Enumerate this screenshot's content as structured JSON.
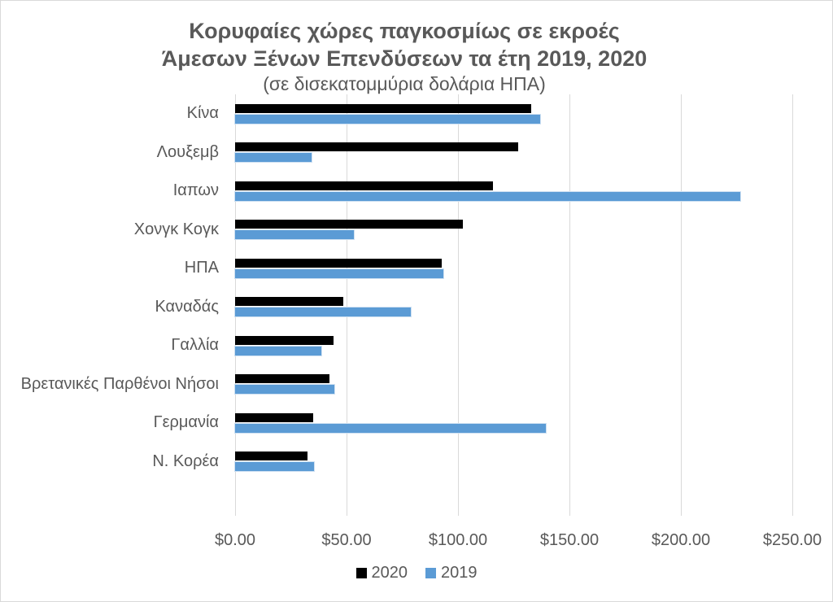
{
  "chart_data": {
    "type": "bar",
    "orientation": "horizontal",
    "title_line1": "Κορυφαίες χώρες παγκοσμίως σε εκροές",
    "title_line2": "Άμεσων Ξένων Επενδύσεων τα έτη 2019, 2020",
    "subtitle": "(σε δισεκατομμύρια δολάρια ΗΠΑ)",
    "categories": [
      "Κίνα",
      "Λουξεμβ",
      "Ιαπων",
      "Χονγκ Κογκ",
      "ΗΠΑ",
      "Καναδάς",
      "Γαλλία",
      "Βρετανικές Παρθένοι Νήσοι",
      "Γερμανία",
      "Ν. Κορέα"
    ],
    "series": [
      {
        "name": "2020",
        "color": "#000000",
        "values": [
          132.9,
          127.1,
          115.7,
          102.2,
          92.8,
          48.7,
          44.2,
          42.5,
          34.9,
          32.5
        ]
      },
      {
        "name": "2019",
        "color": "#5B9BD5",
        "values": [
          136.9,
          34.4,
          226.6,
          53.3,
          93.5,
          79.0,
          38.7,
          44.5,
          139.4,
          35.3
        ]
      }
    ],
    "x_axis": {
      "min": 0,
      "max": 250,
      "tick_step": 50,
      "tick_values": [
        0,
        50,
        100,
        150,
        200,
        250
      ],
      "tick_labels": [
        "$0.00",
        "$50.00",
        "$100.00",
        "$150.00",
        "$200.00",
        "$250.00"
      ]
    },
    "legend": [
      {
        "label": "2020",
        "color": "#000000"
      },
      {
        "label": "2019",
        "color": "#5B9BD5"
      }
    ],
    "legend_position": "bottom",
    "grid": true
  },
  "colors": {
    "text": "#595959",
    "gridline": "#D9D9D9",
    "background": "#FFFFFF",
    "bar_2020": "#000000",
    "bar_2019": "#5B9BD5"
  }
}
